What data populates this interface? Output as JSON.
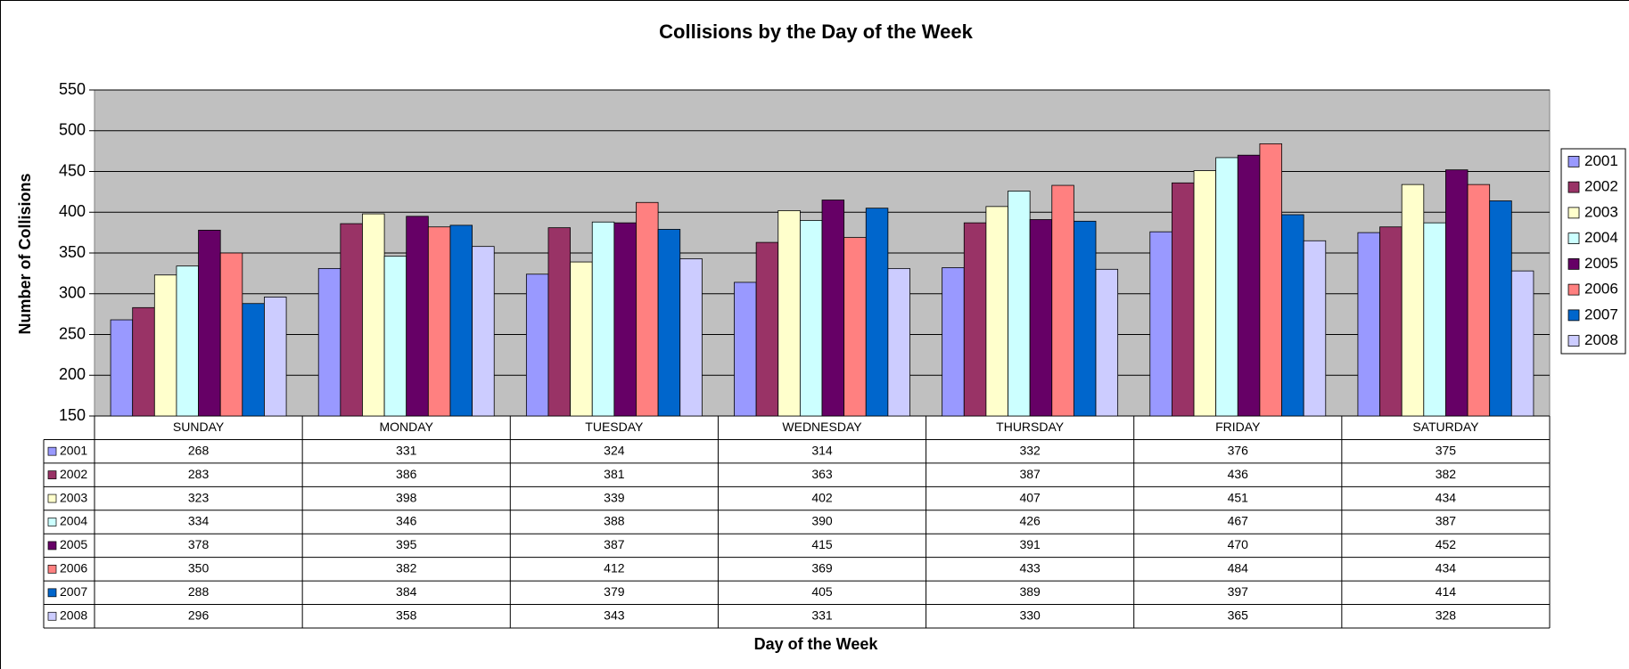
{
  "chart_data": {
    "type": "bar",
    "title": "Collisions by the Day of the Week",
    "x_label": "Day of the Week",
    "y_label": "Number of Collisions",
    "categories": [
      "SUNDAY",
      "MONDAY",
      "TUESDAY",
      "WEDNESDAY",
      "THURSDAY",
      "FRIDAY",
      "SATURDAY"
    ],
    "series": [
      {
        "name": "2001",
        "color": "#9999ff",
        "values": [
          268,
          331,
          324,
          314,
          332,
          376,
          375
        ]
      },
      {
        "name": "2002",
        "color": "#993366",
        "values": [
          283,
          386,
          381,
          363,
          387,
          436,
          382
        ]
      },
      {
        "name": "2003",
        "color": "#ffffcc",
        "values": [
          323,
          398,
          339,
          402,
          407,
          451,
          434
        ]
      },
      {
        "name": "2004",
        "color": "#ccffff",
        "values": [
          334,
          346,
          388,
          390,
          426,
          467,
          387
        ]
      },
      {
        "name": "2005",
        "color": "#660066",
        "values": [
          378,
          395,
          387,
          415,
          391,
          470,
          452
        ]
      },
      {
        "name": "2006",
        "color": "#ff8080",
        "values": [
          350,
          382,
          412,
          369,
          433,
          484,
          434
        ]
      },
      {
        "name": "2007",
        "color": "#0066cc",
        "values": [
          288,
          384,
          379,
          405,
          389,
          397,
          414
        ]
      },
      {
        "name": "2008",
        "color": "#ccccff",
        "values": [
          296,
          358,
          343,
          331,
          330,
          365,
          328
        ]
      }
    ],
    "ylim": [
      150,
      550
    ],
    "yticks": [
      150,
      200,
      250,
      300,
      350,
      400,
      450,
      500,
      550
    ],
    "grid": true,
    "legend": "right",
    "plot_background": "#c0c0c0"
  }
}
